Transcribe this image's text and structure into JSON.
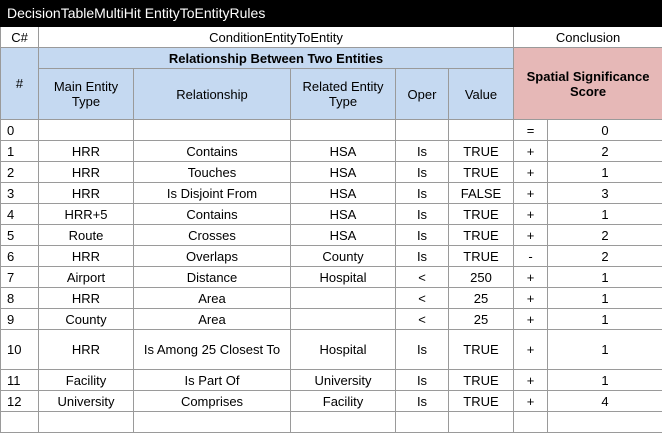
{
  "title": "DecisionTableMultiHit EntityToEntityRules",
  "header": {
    "id": "C#",
    "condition": "ConditionEntityToEntity",
    "conclusion": "Conclusion",
    "group": "Relationship Between Two Entities",
    "hash": "#",
    "columns": [
      "Main Entity Type",
      "Relationship",
      "Related Entity Type",
      "Oper",
      "Value"
    ],
    "score": "Spatial Significance Score"
  },
  "rows": [
    [
      "0",
      null,
      null,
      null,
      null,
      null,
      "=",
      "0"
    ],
    [
      "1",
      "HRR",
      "Contains",
      "HSA",
      "Is",
      "TRUE",
      "+",
      "2"
    ],
    [
      "2",
      "HRR",
      "Touches",
      "HSA",
      "Is",
      "TRUE",
      "+",
      "1"
    ],
    [
      "3",
      "HRR",
      "Is Disjoint From",
      "HSA",
      "Is",
      "FALSE",
      "+",
      "3"
    ],
    [
      "4",
      "HRR+5",
      "Contains",
      "HSA",
      "Is",
      "TRUE",
      "+",
      "1"
    ],
    [
      "5",
      "Route",
      "Crosses",
      "HSA",
      "Is",
      "TRUE",
      "+",
      "2"
    ],
    [
      "6",
      "HRR",
      "Overlaps",
      "County",
      "Is",
      "TRUE",
      "-",
      "2"
    ],
    [
      "7",
      "Airport",
      "Distance",
      "Hospital",
      "<",
      "250",
      "+",
      "1"
    ],
    [
      "8",
      "HRR",
      "Area",
      null,
      "<",
      "25",
      "+",
      "1"
    ],
    [
      "9",
      "County",
      "Area",
      null,
      "<",
      "25",
      "+",
      "1"
    ],
    [
      "10",
      "HRR",
      "Is Among 25 Closest To",
      "Hospital",
      "Is",
      "TRUE",
      "+",
      "1"
    ],
    [
      "11",
      "Facility",
      "Is Part Of",
      "University",
      "Is",
      "TRUE",
      "+",
      "1"
    ],
    [
      "12",
      "University",
      "Comprises",
      "Facility",
      "Is",
      "TRUE",
      "+",
      "4"
    ]
  ]
}
